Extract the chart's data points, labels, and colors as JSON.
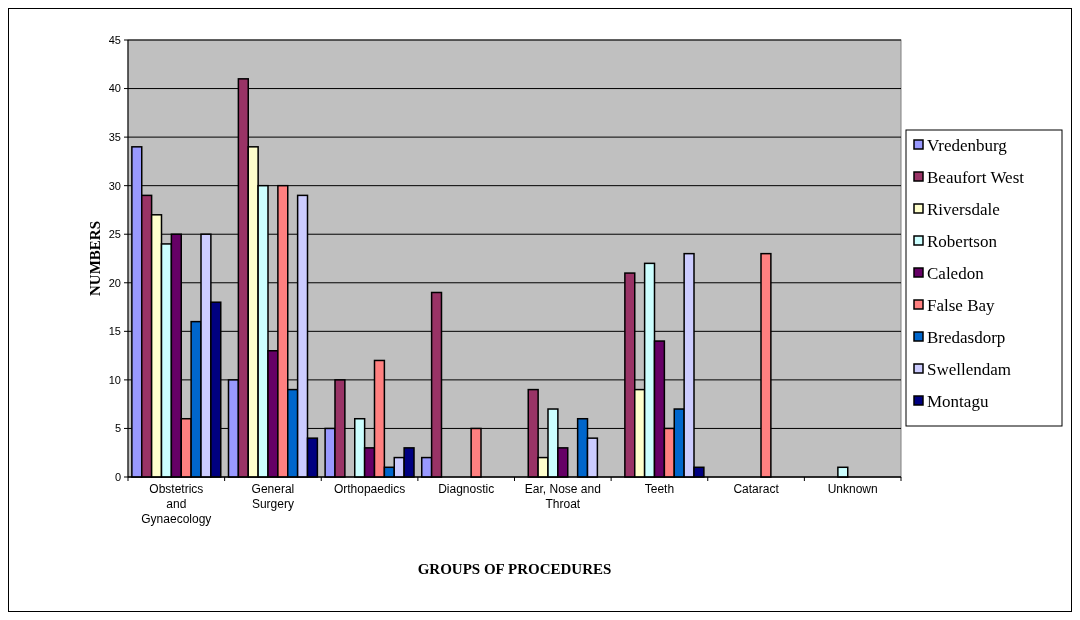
{
  "chart_data": {
    "type": "bar",
    "xlabel": "GROUPS OF PROCEDURES",
    "ylabel": "NUMBERS",
    "categories": [
      "Obstetrics and Gynaecology",
      "General Surgery",
      "Orthopaedics",
      "Diagnostic",
      "Ear, Nose and Throat",
      "Teeth",
      "Cataract",
      "Unknown"
    ],
    "series": [
      {
        "name": "Vredenburg",
        "color": "#9999ff",
        "values": [
          34,
          10,
          5,
          2,
          0,
          0,
          0,
          0
        ]
      },
      {
        "name": "Beaufort West",
        "color": "#993366",
        "values": [
          29,
          41,
          10,
          19,
          9,
          21,
          0,
          0
        ]
      },
      {
        "name": "Riversdale",
        "color": "#ffffcc",
        "values": [
          27,
          34,
          0,
          0,
          2,
          9,
          0,
          0
        ]
      },
      {
        "name": "Robertson",
        "color": "#ccffff",
        "values": [
          24,
          30,
          6,
          0,
          7,
          22,
          0,
          1
        ]
      },
      {
        "name": "Caledon",
        "color": "#660066",
        "values": [
          25,
          13,
          3,
          0,
          3,
          14,
          0,
          0
        ]
      },
      {
        "name": "False Bay",
        "color": "#ff8080",
        "values": [
          6,
          30,
          12,
          5,
          0,
          5,
          23,
          0
        ]
      },
      {
        "name": "Bredasdorp",
        "color": "#0066cc",
        "values": [
          16,
          9,
          1,
          0,
          6,
          7,
          0,
          0
        ]
      },
      {
        "name": "Swellendam",
        "color": "#ccccff",
        "values": [
          25,
          29,
          2,
          0,
          4,
          23,
          0,
          0
        ]
      },
      {
        "name": "Montagu",
        "color": "#000080",
        "values": [
          18,
          4,
          3,
          0,
          0,
          1,
          0,
          0
        ]
      }
    ],
    "ylim": [
      0,
      45
    ],
    "yticks": [
      0,
      5,
      10,
      15,
      20,
      25,
      30,
      35,
      40,
      45
    ],
    "grid": "y",
    "legend": "right"
  }
}
